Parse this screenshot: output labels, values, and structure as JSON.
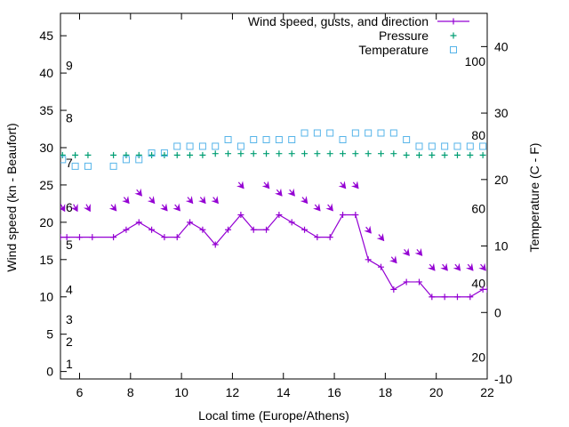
{
  "chart_data": {
    "type": "line",
    "xlabel": "Local time (Europe/Athens)",
    "ylabel": "Wind speed (kn - Beaufort)",
    "y2label": "Temperature (C - F)",
    "xlim": [
      5.25,
      22
    ],
    "ylim": [
      -1,
      48
    ],
    "y2lim": [
      -10,
      45
    ],
    "x_ticks": [
      6,
      8,
      10,
      12,
      14,
      16,
      18,
      20,
      22
    ],
    "y_ticks": [
      0,
      5,
      10,
      15,
      20,
      25,
      30,
      35,
      40,
      45
    ],
    "y2_ticks": [
      -10,
      0,
      10,
      20,
      30,
      40
    ],
    "grid": false,
    "legend_position": "top-right",
    "beaufort_labels": [
      {
        "label": "1",
        "y": 1
      },
      {
        "label": "2",
        "y": 4
      },
      {
        "label": "3",
        "y": 7
      },
      {
        "label": "4",
        "y": 11
      },
      {
        "label": "5",
        "y": 17
      },
      {
        "label": "6",
        "y": 22
      },
      {
        "label": "7",
        "y": 28
      },
      {
        "label": "8",
        "y": 34
      },
      {
        "label": "9",
        "y": 41
      }
    ],
    "fahrenheit_labels": [
      {
        "label": "20",
        "y2": -6.7
      },
      {
        "label": "40",
        "y2": 4.4
      },
      {
        "label": "60",
        "y2": 15.6
      },
      {
        "label": "80",
        "y2": 26.7
      },
      {
        "label": "100",
        "y2": 37.8
      }
    ],
    "series": [
      {
        "name": "Wind speed, gusts, and direction",
        "color": "#9400d3",
        "x": [
          5.25,
          5.5,
          6.0,
          6.5,
          7.33,
          7.83,
          8.33,
          8.83,
          9.33,
          9.83,
          10.33,
          10.83,
          11.33,
          11.83,
          12.33,
          12.83,
          13.33,
          13.83,
          14.33,
          14.83,
          15.33,
          15.83,
          16.33,
          16.83,
          17.33,
          17.83,
          18.33,
          18.83,
          19.33,
          19.83,
          20.33,
          20.83,
          21.33,
          21.83,
          22.0
        ],
        "y": [
          18,
          18,
          18,
          18,
          18,
          19,
          20,
          19,
          18,
          18,
          20,
          19,
          17,
          19,
          21,
          19,
          19,
          21,
          20,
          19,
          18,
          18,
          21,
          21,
          15,
          14,
          11,
          12,
          12,
          10,
          10,
          10,
          10,
          11,
          11
        ]
      },
      {
        "name": "Pressure",
        "color": "#009e73",
        "x": [
          5.33,
          5.83,
          6.33,
          7.33,
          7.83,
          8.33,
          8.83,
          9.33,
          9.83,
          10.33,
          10.83,
          11.33,
          11.83,
          12.33,
          12.83,
          13.33,
          13.83,
          14.33,
          14.83,
          15.33,
          15.83,
          16.33,
          16.83,
          17.33,
          17.83,
          18.33,
          18.83,
          19.33,
          19.83,
          20.33,
          20.83,
          21.33,
          21.83
        ],
        "y": [
          29,
          29,
          29,
          29,
          29,
          29,
          29,
          29,
          29,
          29,
          29,
          29.2,
          29.2,
          29.2,
          29.2,
          29.2,
          29.2,
          29.2,
          29.2,
          29.2,
          29.2,
          29.2,
          29.2,
          29.2,
          29.2,
          29.2,
          29,
          29,
          29,
          29,
          29,
          29,
          29
        ]
      },
      {
        "name": "Temperature",
        "color": "#56b4e9",
        "axis": "y2",
        "x": [
          5.33,
          5.83,
          6.33,
          7.33,
          7.83,
          8.33,
          8.83,
          9.33,
          9.83,
          10.33,
          10.83,
          11.33,
          11.83,
          12.33,
          12.83,
          13.33,
          13.83,
          14.33,
          14.83,
          15.33,
          15.83,
          16.33,
          16.83,
          17.33,
          17.83,
          18.33,
          18.83,
          19.33,
          19.83,
          20.33,
          20.83,
          21.33,
          21.83
        ],
        "y": [
          23,
          22,
          22,
          22,
          23,
          23,
          24,
          24,
          25,
          25,
          25,
          25,
          26,
          25,
          26,
          26,
          26,
          26,
          27,
          27,
          27,
          26,
          27,
          27,
          27,
          27,
          26,
          25,
          25,
          25,
          25,
          25,
          25
        ]
      }
    ],
    "wind_direction_arrows": {
      "x": [
        5.33,
        5.83,
        6.33,
        7.33,
        7.83,
        8.33,
        8.83,
        9.33,
        9.83,
        10.33,
        10.83,
        11.33,
        12.33,
        13.33,
        13.83,
        14.33,
        14.83,
        15.33,
        15.83,
        16.33,
        16.83,
        17.33,
        17.83,
        18.33,
        18.83,
        19.33,
        19.83,
        20.33,
        20.83,
        21.33,
        21.83
      ],
      "y": [
        22,
        22,
        22,
        22,
        23,
        24,
        23,
        22,
        22,
        23,
        23,
        23,
        25,
        25,
        24,
        24,
        23,
        22,
        22,
        25,
        25,
        19,
        18,
        15,
        16,
        16,
        14,
        14,
        14,
        14,
        14
      ],
      "direction_deg": [
        330,
        330,
        330,
        320,
        320,
        320,
        320,
        320,
        320,
        320,
        320,
        320,
        320,
        320,
        320,
        320,
        320,
        320,
        320,
        320,
        320,
        320,
        320,
        320,
        320,
        320,
        320,
        320,
        320,
        320,
        320
      ]
    }
  }
}
